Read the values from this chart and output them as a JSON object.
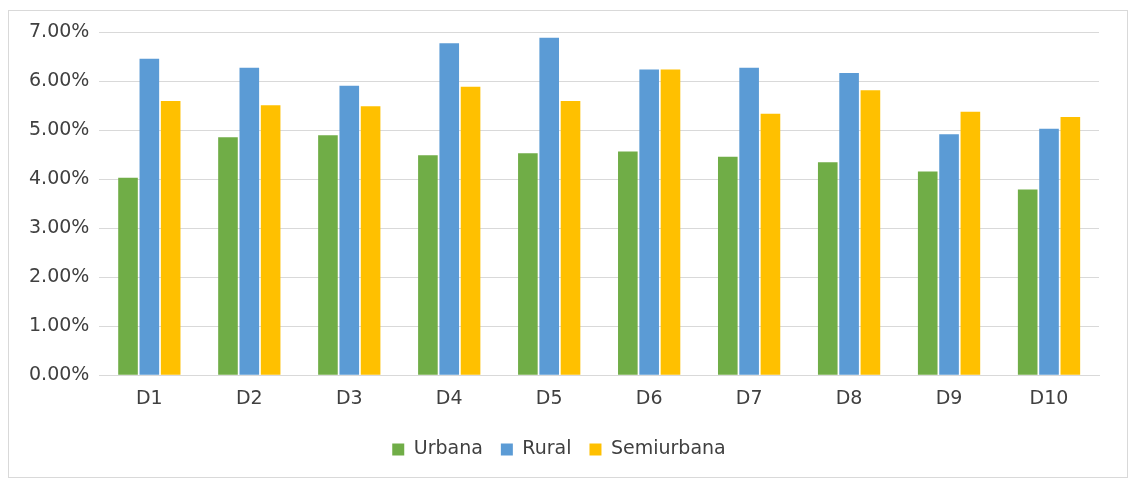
{
  "chart_data": {
    "type": "bar",
    "categories": [
      "D1",
      "D2",
      "D3",
      "D4",
      "D5",
      "D6",
      "D7",
      "D8",
      "D9",
      "D10"
    ],
    "series": [
      {
        "name": "Urbana",
        "color": "#70ad47",
        "values": [
          4.03,
          4.86,
          4.9,
          4.49,
          4.53,
          4.57,
          4.46,
          4.35,
          4.16,
          3.79
        ]
      },
      {
        "name": "Rural",
        "color": "#5b9bd5",
        "values": [
          6.46,
          6.28,
          5.91,
          6.78,
          6.89,
          6.24,
          6.28,
          6.17,
          4.92,
          5.03
        ]
      },
      {
        "name": "Semiurbana",
        "color": "#ffc000",
        "values": [
          5.6,
          5.51,
          5.49,
          5.89,
          5.6,
          6.24,
          5.34,
          5.82,
          5.38,
          5.27
        ]
      }
    ],
    "ylim": [
      0,
      7
    ],
    "yticks": [
      {
        "value": 0,
        "label": "0.00%"
      },
      {
        "value": 1,
        "label": "1.00%"
      },
      {
        "value": 2,
        "label": "2.00%"
      },
      {
        "value": 3,
        "label": "3.00%"
      },
      {
        "value": 4,
        "label": "4.00%"
      },
      {
        "value": 5,
        "label": "5.00%"
      },
      {
        "value": 6,
        "label": "6.00%"
      },
      {
        "value": 7,
        "label": "7.00%"
      }
    ],
    "grid": "y",
    "legend": "bottom"
  }
}
